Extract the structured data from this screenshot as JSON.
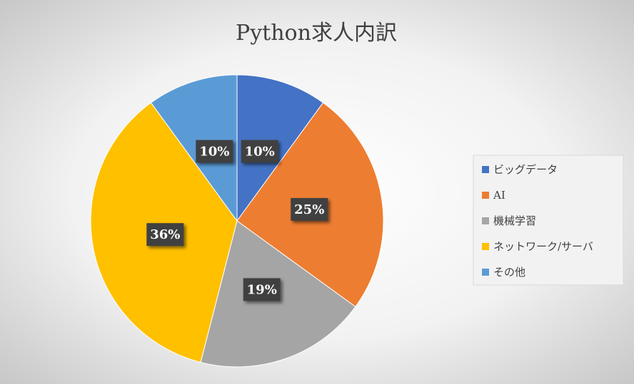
{
  "chart_data": {
    "type": "pie",
    "title": "Python求人内訳",
    "categories": [
      "ビッグデータ",
      "AI",
      "機械学習",
      "ネットワーク/サーバ",
      "その他"
    ],
    "values": [
      10,
      25,
      19,
      36,
      10
    ],
    "value_labels": [
      "10%",
      "25%",
      "19%",
      "36%",
      "10%"
    ],
    "colors": [
      "#4472c4",
      "#ed7d31",
      "#a5a5a5",
      "#ffc000",
      "#5b9bd5"
    ],
    "legend": "right"
  }
}
